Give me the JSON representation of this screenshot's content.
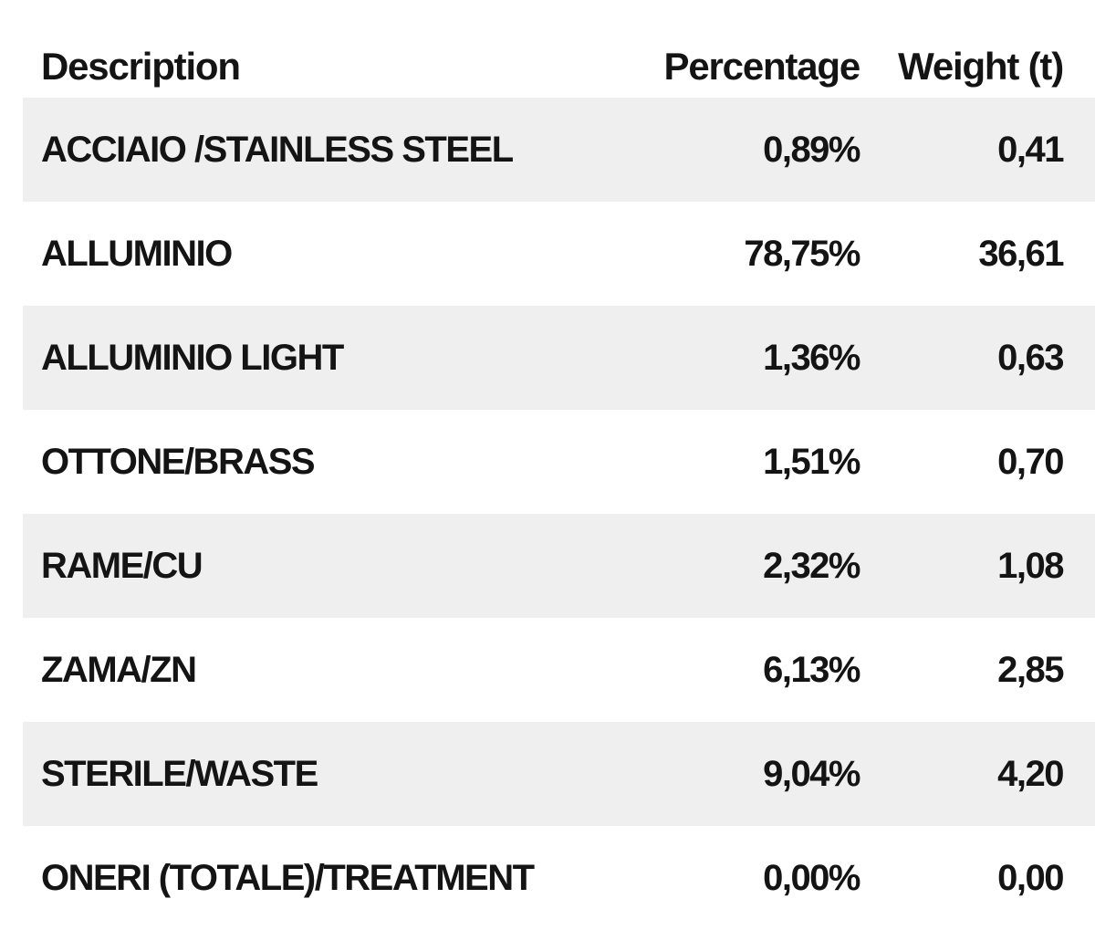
{
  "table": {
    "headers": {
      "description": "Description",
      "percentage": "Percentage",
      "weight": "Weight (t)"
    },
    "rows": [
      {
        "description": "ACCIAIO /STAINLESS STEEL",
        "percentage": "0,89%",
        "weight": "0,41"
      },
      {
        "description": "ALLUMINIO",
        "percentage": "78,75%",
        "weight": "36,61"
      },
      {
        "description": "ALLUMINIO LIGHT",
        "percentage": "1,36%",
        "weight": "0,63"
      },
      {
        "description": "OTTONE/BRASS",
        "percentage": "1,51%",
        "weight": "0,70"
      },
      {
        "description": "RAME/CU",
        "percentage": "2,32%",
        "weight": "1,08"
      },
      {
        "description": "ZAMA/ZN",
        "percentage": "6,13%",
        "weight": "2,85"
      },
      {
        "description": "STERILE/WASTE",
        "percentage": "9,04%",
        "weight": "4,20"
      },
      {
        "description": "ONERI (TOTALE)/TREATMENT",
        "percentage": "0,00%",
        "weight": "0,00"
      }
    ],
    "colors": {
      "band": "#efefef",
      "text": "#141414"
    }
  }
}
